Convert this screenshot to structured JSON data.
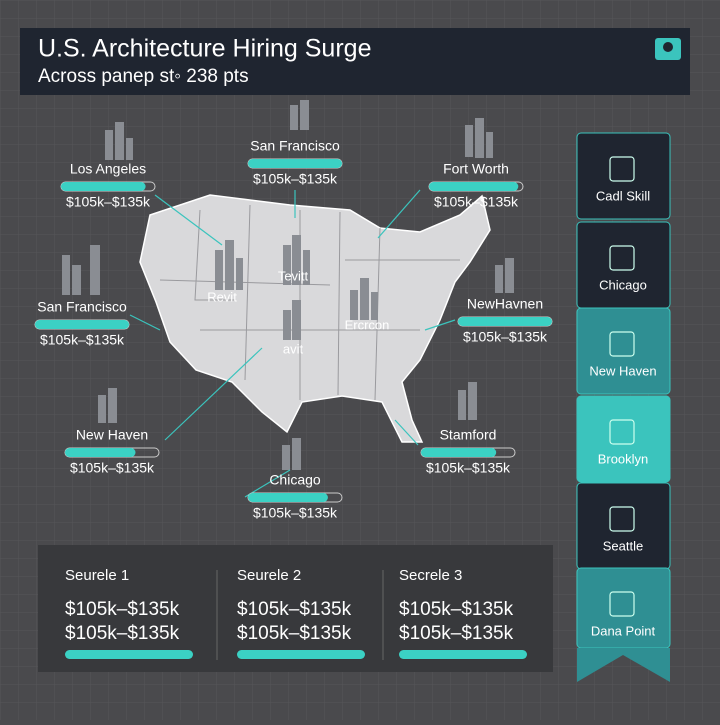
{
  "header": {
    "title": "U.S. Architecture Hiring Surge",
    "subtitle": "Across panep st◦ 238 pts"
  },
  "map_labels": [
    "Revit",
    "Tevitt",
    "Ercrcon",
    "avit"
  ],
  "callouts": [
    {
      "name": "Los Angeles",
      "salary": "$105k–$135k"
    },
    {
      "name": "San Francisco",
      "salary": "$105k–$135k"
    },
    {
      "name": "Fort Worth",
      "salary": "$105k–$135k"
    },
    {
      "name": "San Francisco",
      "salary": "$105k–$135k"
    },
    {
      "name": "NewHavnen",
      "salary": "$105k–$135k"
    },
    {
      "name": "New Haven",
      "salary": "$105k–$135k"
    },
    {
      "name": "Stamford",
      "salary": "$105k–$135k"
    },
    {
      "name": "Chicago",
      "salary": "$105k–$135k"
    }
  ],
  "sidebar": [
    "Cadl Skill",
    "Chicago",
    "New Haven",
    "Brooklyn",
    "Seattle",
    "Dana Point"
  ],
  "panels": [
    {
      "title": "Seurele 1",
      "lines": [
        "$105k–$135k",
        "$105k–$135k"
      ]
    },
    {
      "title": "Seurele 2",
      "lines": [
        "$105k–$135k",
        "$105k–$135k"
      ]
    },
    {
      "title": "Secrele 3",
      "lines": [
        "$105k–$135k",
        "$105k–$135k"
      ]
    }
  ]
}
